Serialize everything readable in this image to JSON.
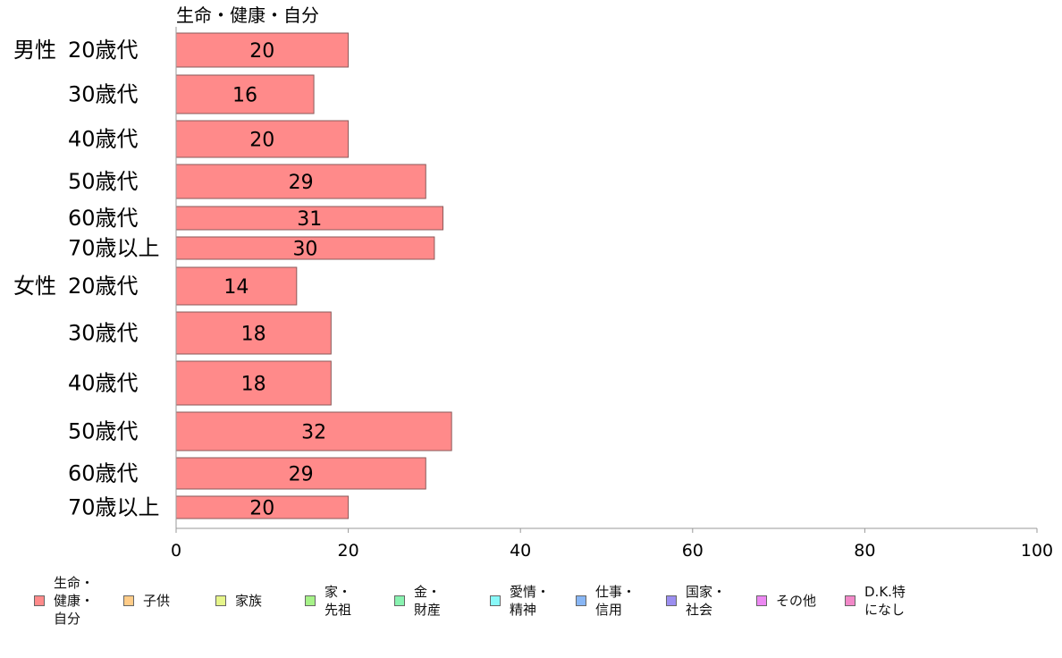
{
  "chart_data": {
    "type": "bar",
    "orientation": "horizontal",
    "stacked": true,
    "title": "",
    "xlim": [
      0,
      100
    ],
    "x_ticks": [
      0,
      20,
      40,
      60,
      80,
      100
    ],
    "grid": false,
    "legend_position": "bottom",
    "rows": [
      {
        "group": "男性",
        "label": "20歳代",
        "value": 20
      },
      {
        "group": "",
        "label": "30歳代",
        "value": 16
      },
      {
        "group": "",
        "label": "40歳代",
        "value": 20
      },
      {
        "group": "",
        "label": "50歳代",
        "value": 29
      },
      {
        "group": "",
        "label": "60歳代",
        "value": 31
      },
      {
        "group": "",
        "label": "70歳以上",
        "value": 30
      },
      {
        "group": "女性",
        "label": "20歳代",
        "value": 14
      },
      {
        "group": "",
        "label": "30歳代",
        "value": 18
      },
      {
        "group": "",
        "label": "40歳代",
        "value": 18
      },
      {
        "group": "",
        "label": "50歳代",
        "value": 32
      },
      {
        "group": "",
        "label": "60歳代",
        "value": 29
      },
      {
        "group": "",
        "label": "70歳以上",
        "value": 20
      }
    ],
    "series": [
      {
        "name": "生命・健康・自分",
        "top_label": "生命・健康・自分",
        "legend_label": "生命・\n健康・\n自分",
        "color": "#ff8a8a"
      },
      {
        "name": "子供",
        "legend_label": "子供",
        "color": "#ffcc88"
      },
      {
        "name": "家族",
        "legend_label": "家族",
        "color": "#e6f58a"
      },
      {
        "name": "家・先祖",
        "legend_label": "家・\n先祖",
        "color": "#a6f288"
      },
      {
        "name": "金・財産",
        "legend_label": "金・\n財産",
        "color": "#88f2b0"
      },
      {
        "name": "愛情・精神",
        "legend_label": "愛情・\n精神",
        "color": "#88f8f8"
      },
      {
        "name": "仕事・信用",
        "legend_label": "仕事・\n信用",
        "color": "#88b6f5"
      },
      {
        "name": "国家・社会",
        "legend_label": "国家・\n社会",
        "color": "#9b8ef0"
      },
      {
        "name": "その他",
        "legend_label": "その他",
        "color": "#ec88f2"
      },
      {
        "name": "D.K.特になし",
        "legend_label": "D.K.特\nになし",
        "color": "#f288c8"
      }
    ]
  }
}
